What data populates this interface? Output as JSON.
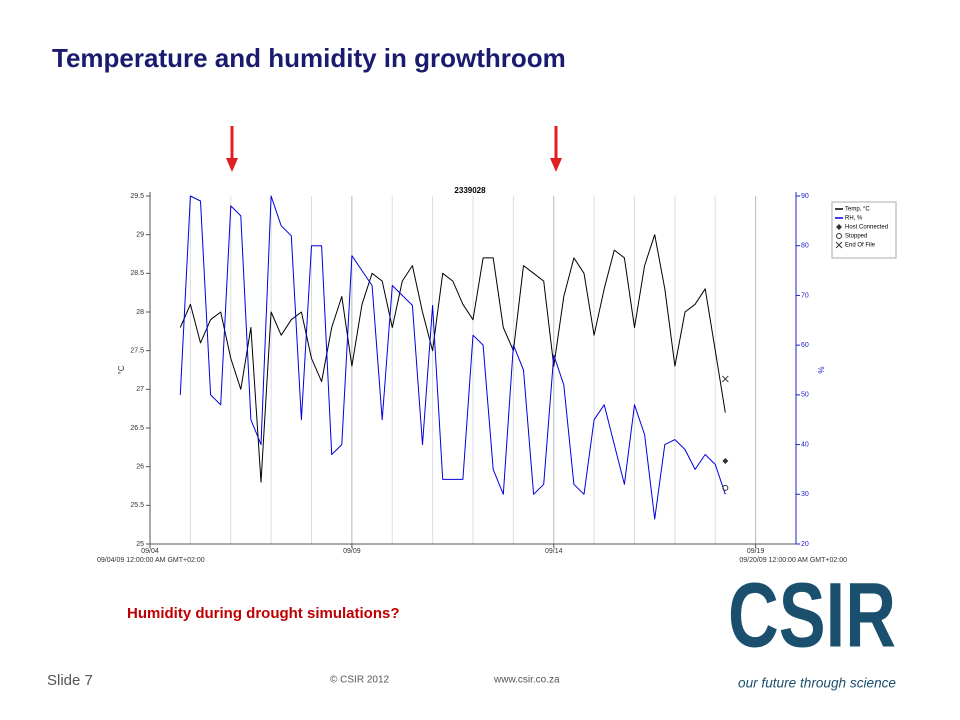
{
  "slide": {
    "title": "Temperature and humidity in growthroom",
    "question": "Humidity during drought simulations?",
    "footer_slide": "Slide 7",
    "footer_copyright": "© CSIR 2012",
    "footer_url": "www.csir.co.za",
    "logo_text": "CSIR",
    "logo_tagline": "our future through science"
  },
  "chart_data": {
    "type": "line",
    "title": "2339028",
    "ylabel": "°C",
    "y2label": "%",
    "x": [
      4.75,
      5,
      5.25,
      5.5,
      5.75,
      6,
      6.25,
      6.5,
      6.75,
      7,
      7.25,
      7.5,
      7.75,
      8,
      8.25,
      8.5,
      8.75,
      9,
      9.25,
      9.5,
      9.75,
      10,
      10.25,
      10.5,
      10.75,
      11,
      11.25,
      11.5,
      11.75,
      12,
      12.25,
      12.5,
      12.75,
      13,
      13.25,
      13.5,
      13.75,
      14,
      14.25,
      14.5,
      14.75,
      15,
      15.25,
      15.5,
      15.75,
      16,
      16.25,
      16.5,
      16.75,
      17,
      17.25,
      17.5,
      17.75,
      18,
      18.25
    ],
    "series": [
      {
        "name": "Temp, °C",
        "color": "#000000",
        "axis": "y",
        "values": [
          27.8,
          28.1,
          27.6,
          27.9,
          28.0,
          27.4,
          27.0,
          27.8,
          25.8,
          28.0,
          27.7,
          27.9,
          28.0,
          27.4,
          27.1,
          27.8,
          28.2,
          27.3,
          28.1,
          28.5,
          28.4,
          27.8,
          28.4,
          28.6,
          28.0,
          27.5,
          28.5,
          28.4,
          28.1,
          27.9,
          28.7,
          28.7,
          27.8,
          27.5,
          28.6,
          28.5,
          28.4,
          27.3,
          28.2,
          28.7,
          28.5,
          27.7,
          28.3,
          28.8,
          28.7,
          27.8,
          28.6,
          29.0,
          28.3,
          27.3,
          28.0,
          28.1,
          28.3,
          27.5,
          26.7
        ]
      },
      {
        "name": "RH, %",
        "color": "#0000dd",
        "axis": "y2",
        "values": [
          50,
          90,
          89,
          50,
          48,
          88,
          86,
          45,
          40,
          90,
          84,
          82,
          45,
          80,
          80,
          38,
          40,
          78,
          75,
          72,
          45,
          72,
          70,
          68,
          40,
          68,
          33,
          33,
          33,
          62,
          60,
          35,
          30,
          60,
          55,
          30,
          32,
          58,
          52,
          32,
          30,
          45,
          48,
          40,
          32,
          48,
          42,
          25,
          40,
          41,
          39,
          35,
          38,
          36,
          30
        ]
      }
    ],
    "events": [
      {
        "name": "Host Connected",
        "symbol": "diamond",
        "x": 18.25,
        "value": 36.7
      },
      {
        "name": "Stopped",
        "symbol": "circle",
        "x": 18.25,
        "value": 31.3
      },
      {
        "name": "End Of File",
        "symbol": "cross",
        "x": 18.25,
        "value": 53.2
      }
    ],
    "xlim": [
      4,
      20
    ],
    "xticks": [
      {
        "value": 4,
        "label": "09/04"
      },
      {
        "value": 9,
        "label": "09/09"
      },
      {
        "value": 14,
        "label": "09/14"
      },
      {
        "value": 19,
        "label": "09/19"
      }
    ],
    "x_minor_ticks": [
      5,
      6,
      7,
      8,
      10,
      11,
      12,
      13,
      15,
      16,
      17,
      18
    ],
    "xlim_labels": [
      "09/04/09 12:00:00 AM GMT+02:00",
      "09/20/09 12:00:00 AM GMT+02:00"
    ],
    "ylim": [
      25,
      29.5
    ],
    "yticks": [
      25,
      25.5,
      26,
      26.5,
      27,
      27.5,
      28,
      28.5,
      29,
      29.5
    ],
    "y2lim": [
      20,
      90
    ],
    "y2ticks": [
      20,
      30,
      40,
      50,
      60,
      70,
      80,
      90
    ],
    "grid": true,
    "legend": "top-right"
  }
}
